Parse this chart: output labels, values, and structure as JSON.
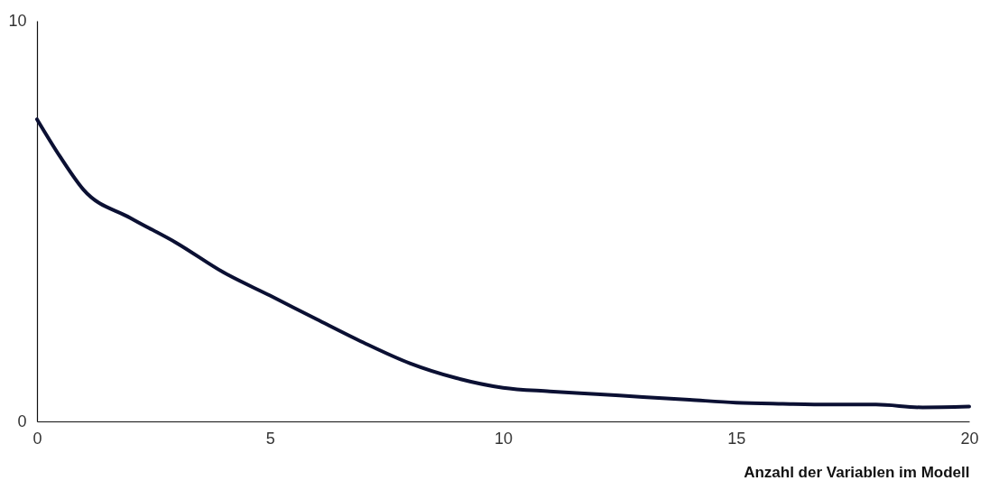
{
  "chart_data": {
    "type": "line",
    "xlabel": "Anzahl der Variablen im Modell",
    "x": [
      0,
      0.5,
      1,
      2,
      3,
      4,
      5,
      6,
      7,
      8,
      9,
      10,
      11,
      12,
      13,
      14,
      15,
      16,
      17,
      18,
      19,
      20
    ],
    "series": [
      {
        "color": "#0b1033",
        "values": [
          7.54,
          6.6,
          5.78,
          5.08,
          4.45,
          3.72,
          3.14,
          2.55,
          1.97,
          1.45,
          1.08,
          0.84,
          0.75,
          0.68,
          0.61,
          0.54,
          0.47,
          0.44,
          0.42,
          0.42,
          0.35,
          0.37
        ]
      }
    ],
    "xlim": [
      0,
      20
    ],
    "xticks": [
      0,
      5,
      10,
      15,
      20
    ],
    "ylim": [
      0,
      10
    ],
    "yticks": [
      0,
      10
    ],
    "grid": false,
    "legend": false,
    "marker": "none",
    "line_style": "solid"
  }
}
